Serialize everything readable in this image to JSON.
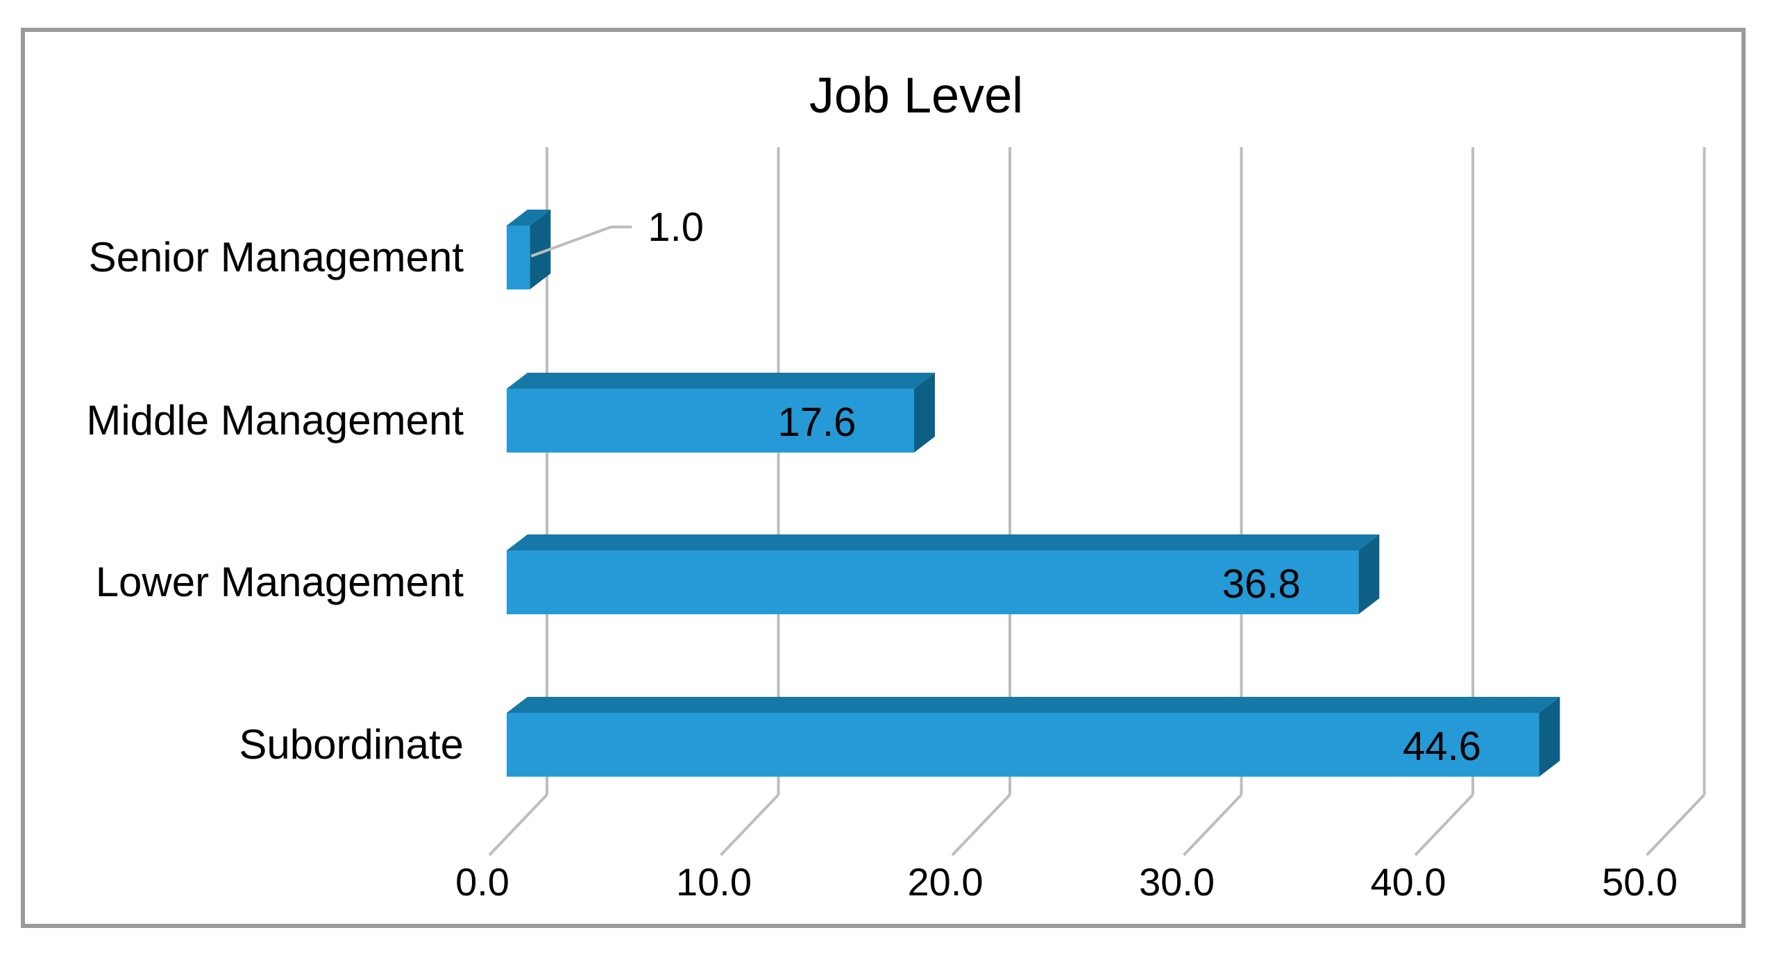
{
  "chart_data": {
    "type": "bar",
    "orientation": "horizontal",
    "title": "Job Level",
    "categories": [
      "Senior Management",
      "Middle Management",
      "Lower Management",
      "Subordinate"
    ],
    "values": [
      1.0,
      17.6,
      36.8,
      44.6
    ],
    "value_labels": [
      "1.0",
      "17.6",
      "36.8",
      "44.6"
    ],
    "xlim": [
      0,
      50
    ],
    "xticks": [
      "0.0",
      "10.0",
      "20.0",
      "30.0",
      "40.0",
      "50.0"
    ],
    "xlabel": "",
    "ylabel": "",
    "grid": true,
    "style": "3d",
    "colors": {
      "bar_front": "#259ad6",
      "bar_top": "#1678a6",
      "bar_side": "#0d5f86",
      "grid": "#bdbdbd",
      "leader": "#bdbdbd",
      "frame": "#9a9a9a"
    }
  }
}
